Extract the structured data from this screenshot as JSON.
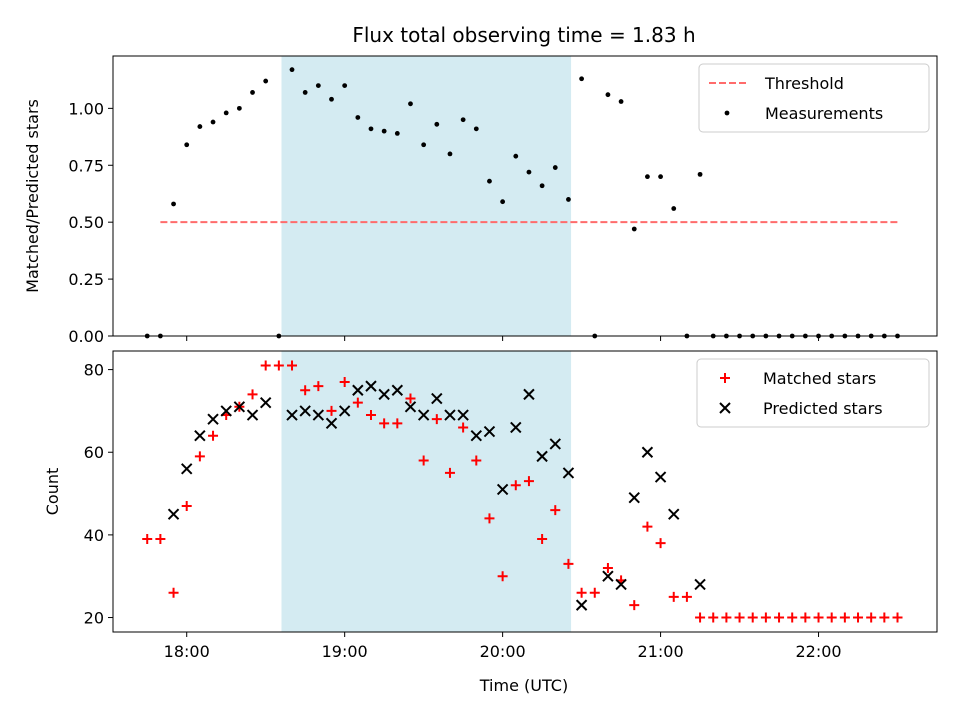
{
  "chart_data": {
    "type": "scatter",
    "title": "Flux total observing time = 1.83 h",
    "xlabel": "Time (UTC)",
    "x_tick_labels": [
      "18:00",
      "19:00",
      "20:00",
      "21:00",
      "22:00"
    ],
    "x_ticks": [
      "18:00",
      "19:00",
      "20:00",
      "21:00",
      "22:00"
    ],
    "xlim": [
      "17:32",
      "22:45"
    ],
    "highlight_span": {
      "start": "18:36",
      "end": "20:26",
      "color": "#add8e6"
    },
    "colors": {
      "threshold": "#ff6b6b",
      "measurements": "#000000",
      "matched": "#ff0000",
      "predicted": "#000000",
      "highlight": "#d4ebf2"
    },
    "panels": [
      {
        "id": "ratio",
        "ylabel": "Matched/Predicted stars",
        "ylim": [
          0,
          1.23
        ],
        "y_ticks": [
          0.0,
          0.25,
          0.5,
          0.75,
          1.0
        ],
        "y_tick_labels": [
          "0.00",
          "0.25",
          "0.50",
          "0.75",
          "1.00"
        ],
        "legend": [
          "Threshold",
          "Measurements"
        ],
        "threshold": {
          "name": "Threshold",
          "value": 0.5,
          "x_start": "17:50",
          "x_end": "22:30",
          "style": "dashed"
        },
        "series": [
          {
            "name": "Measurements",
            "marker": "dot",
            "points": [
              [
                "17:45",
                0.0
              ],
              [
                "17:50",
                0.0
              ],
              [
                "17:55",
                0.58
              ],
              [
                "18:00",
                0.84
              ],
              [
                "18:05",
                0.92
              ],
              [
                "18:10",
                0.94
              ],
              [
                "18:15",
                0.98
              ],
              [
                "18:20",
                1.0
              ],
              [
                "18:25",
                1.07
              ],
              [
                "18:30",
                1.12
              ],
              [
                "18:35",
                0.0
              ],
              [
                "18:40",
                1.17
              ],
              [
                "18:45",
                1.07
              ],
              [
                "18:50",
                1.1
              ],
              [
                "18:55",
                1.04
              ],
              [
                "19:00",
                1.1
              ],
              [
                "19:05",
                0.96
              ],
              [
                "19:10",
                0.91
              ],
              [
                "19:15",
                0.9
              ],
              [
                "19:20",
                0.89
              ],
              [
                "19:25",
                1.02
              ],
              [
                "19:30",
                0.84
              ],
              [
                "19:35",
                0.93
              ],
              [
                "19:40",
                0.8
              ],
              [
                "19:45",
                0.95
              ],
              [
                "19:50",
                0.91
              ],
              [
                "19:55",
                0.68
              ],
              [
                "20:00",
                0.59
              ],
              [
                "20:05",
                0.79
              ],
              [
                "20:10",
                0.72
              ],
              [
                "20:15",
                0.66
              ],
              [
                "20:20",
                0.74
              ],
              [
                "20:25",
                0.6
              ],
              [
                "20:30",
                1.13
              ],
              [
                "20:35",
                0.0
              ],
              [
                "20:40",
                1.06
              ],
              [
                "20:45",
                1.03
              ],
              [
                "20:50",
                0.47
              ],
              [
                "20:55",
                0.7
              ],
              [
                "21:00",
                0.7
              ],
              [
                "21:05",
                0.56
              ],
              [
                "21:10",
                0.0
              ],
              [
                "21:15",
                0.71
              ],
              [
                "21:20",
                0.0
              ],
              [
                "21:25",
                0.0
              ],
              [
                "21:30",
                0.0
              ],
              [
                "21:35",
                0.0
              ],
              [
                "21:40",
                0.0
              ],
              [
                "21:45",
                0.0
              ],
              [
                "21:50",
                0.0
              ],
              [
                "21:55",
                0.0
              ],
              [
                "22:00",
                0.0
              ],
              [
                "22:05",
                0.0
              ],
              [
                "22:10",
                0.0
              ],
              [
                "22:15",
                0.0
              ],
              [
                "22:20",
                0.0
              ],
              [
                "22:25",
                0.0
              ],
              [
                "22:30",
                0.0
              ]
            ]
          }
        ]
      },
      {
        "id": "counts",
        "ylabel": "Count",
        "ylim": [
          16.5,
          84.5
        ],
        "y_ticks": [
          20,
          40,
          60,
          80
        ],
        "y_tick_labels": [
          "20",
          "40",
          "60",
          "80"
        ],
        "legend": [
          "Matched stars",
          "Predicted stars"
        ],
        "series": [
          {
            "name": "Matched stars",
            "marker": "plus",
            "points": [
              [
                "17:45",
                39
              ],
              [
                "17:50",
                39
              ],
              [
                "17:55",
                26
              ],
              [
                "18:00",
                47
              ],
              [
                "18:05",
                59
              ],
              [
                "18:10",
                64
              ],
              [
                "18:15",
                69
              ],
              [
                "18:20",
                71
              ],
              [
                "18:25",
                74
              ],
              [
                "18:30",
                81
              ],
              [
                "18:35",
                81
              ],
              [
                "18:40",
                81
              ],
              [
                "18:45",
                75
              ],
              [
                "18:50",
                76
              ],
              [
                "18:55",
                70
              ],
              [
                "19:00",
                77
              ],
              [
                "19:05",
                72
              ],
              [
                "19:10",
                69
              ],
              [
                "19:15",
                67
              ],
              [
                "19:20",
                67
              ],
              [
                "19:25",
                73
              ],
              [
                "19:30",
                58
              ],
              [
                "19:35",
                68
              ],
              [
                "19:40",
                55
              ],
              [
                "19:45",
                66
              ],
              [
                "19:50",
                58
              ],
              [
                "19:55",
                44
              ],
              [
                "20:00",
                30
              ],
              [
                "20:05",
                52
              ],
              [
                "20:10",
                53
              ],
              [
                "20:15",
                39
              ],
              [
                "20:20",
                46
              ],
              [
                "20:25",
                33
              ],
              [
                "20:30",
                26
              ],
              [
                "20:35",
                26
              ],
              [
                "20:40",
                32
              ],
              [
                "20:45",
                29
              ],
              [
                "20:50",
                23
              ],
              [
                "20:55",
                42
              ],
              [
                "21:00",
                38
              ],
              [
                "21:05",
                25
              ],
              [
                "21:10",
                25
              ],
              [
                "21:15",
                20
              ],
              [
                "21:20",
                20
              ],
              [
                "21:25",
                20
              ],
              [
                "21:30",
                20
              ],
              [
                "21:35",
                20
              ],
              [
                "21:40",
                20
              ],
              [
                "21:45",
                20
              ],
              [
                "21:50",
                20
              ],
              [
                "21:55",
                20
              ],
              [
                "22:00",
                20
              ],
              [
                "22:05",
                20
              ],
              [
                "22:10",
                20
              ],
              [
                "22:15",
                20
              ],
              [
                "22:20",
                20
              ],
              [
                "22:25",
                20
              ],
              [
                "22:30",
                20
              ]
            ]
          },
          {
            "name": "Predicted stars",
            "marker": "x",
            "points": [
              [
                "17:55",
                45
              ],
              [
                "18:00",
                56
              ],
              [
                "18:05",
                64
              ],
              [
                "18:10",
                68
              ],
              [
                "18:15",
                70
              ],
              [
                "18:20",
                71
              ],
              [
                "18:25",
                69
              ],
              [
                "18:30",
                72
              ],
              [
                "18:40",
                69
              ],
              [
                "18:45",
                70
              ],
              [
                "18:50",
                69
              ],
              [
                "18:55",
                67
              ],
              [
                "19:00",
                70
              ],
              [
                "19:05",
                75
              ],
              [
                "19:10",
                76
              ],
              [
                "19:15",
                74
              ],
              [
                "19:20",
                75
              ],
              [
                "19:25",
                71
              ],
              [
                "19:30",
                69
              ],
              [
                "19:35",
                73
              ],
              [
                "19:40",
                69
              ],
              [
                "19:45",
                69
              ],
              [
                "19:50",
                64
              ],
              [
                "19:55",
                65
              ],
              [
                "20:00",
                51
              ],
              [
                "20:05",
                66
              ],
              [
                "20:10",
                74
              ],
              [
                "20:15",
                59
              ],
              [
                "20:20",
                62
              ],
              [
                "20:25",
                55
              ],
              [
                "20:30",
                23
              ],
              [
                "20:40",
                30
              ],
              [
                "20:45",
                28
              ],
              [
                "20:50",
                49
              ],
              [
                "20:55",
                60
              ],
              [
                "21:00",
                54
              ],
              [
                "21:05",
                45
              ],
              [
                "21:15",
                28
              ]
            ]
          }
        ]
      }
    ]
  }
}
